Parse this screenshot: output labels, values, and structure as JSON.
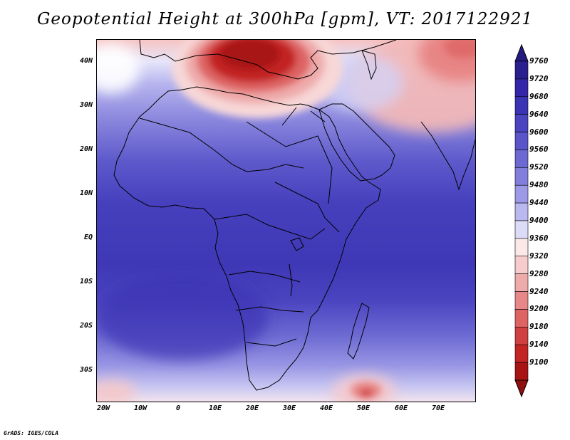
{
  "title": "Geopotential Height at 300hPa [gpm], VT: 2017122921",
  "lat_labels": [
    "40N",
    "30N",
    "20N",
    "10N",
    "EQ",
    "10S",
    "20S",
    "30S"
  ],
  "lon_labels": [
    "20W",
    "10W",
    "0",
    "10E",
    "20E",
    "30E",
    "40E",
    "50E",
    "60E",
    "70E"
  ],
  "colorbar": {
    "labels": [
      "9760",
      "9720",
      "9680",
      "9640",
      "9600",
      "9560",
      "9520",
      "9480",
      "9440",
      "9400",
      "9360",
      "9320",
      "9280",
      "9240",
      "9200",
      "9180",
      "9140",
      "9100"
    ],
    "colors": [
      "#2b1f8f",
      "#3326a8",
      "#3a33b4",
      "#4a44c0",
      "#5a55c9",
      "#6c69d2",
      "#827fdc",
      "#9c9ae6",
      "#b9b8ef",
      "#dddcf7",
      "#fbe8e8",
      "#f6cccc",
      "#efaaaa",
      "#e78888",
      "#de6464",
      "#d14040",
      "#c32424",
      "#a81414"
    ]
  },
  "footer": "GrADS: IGES/COLA"
}
